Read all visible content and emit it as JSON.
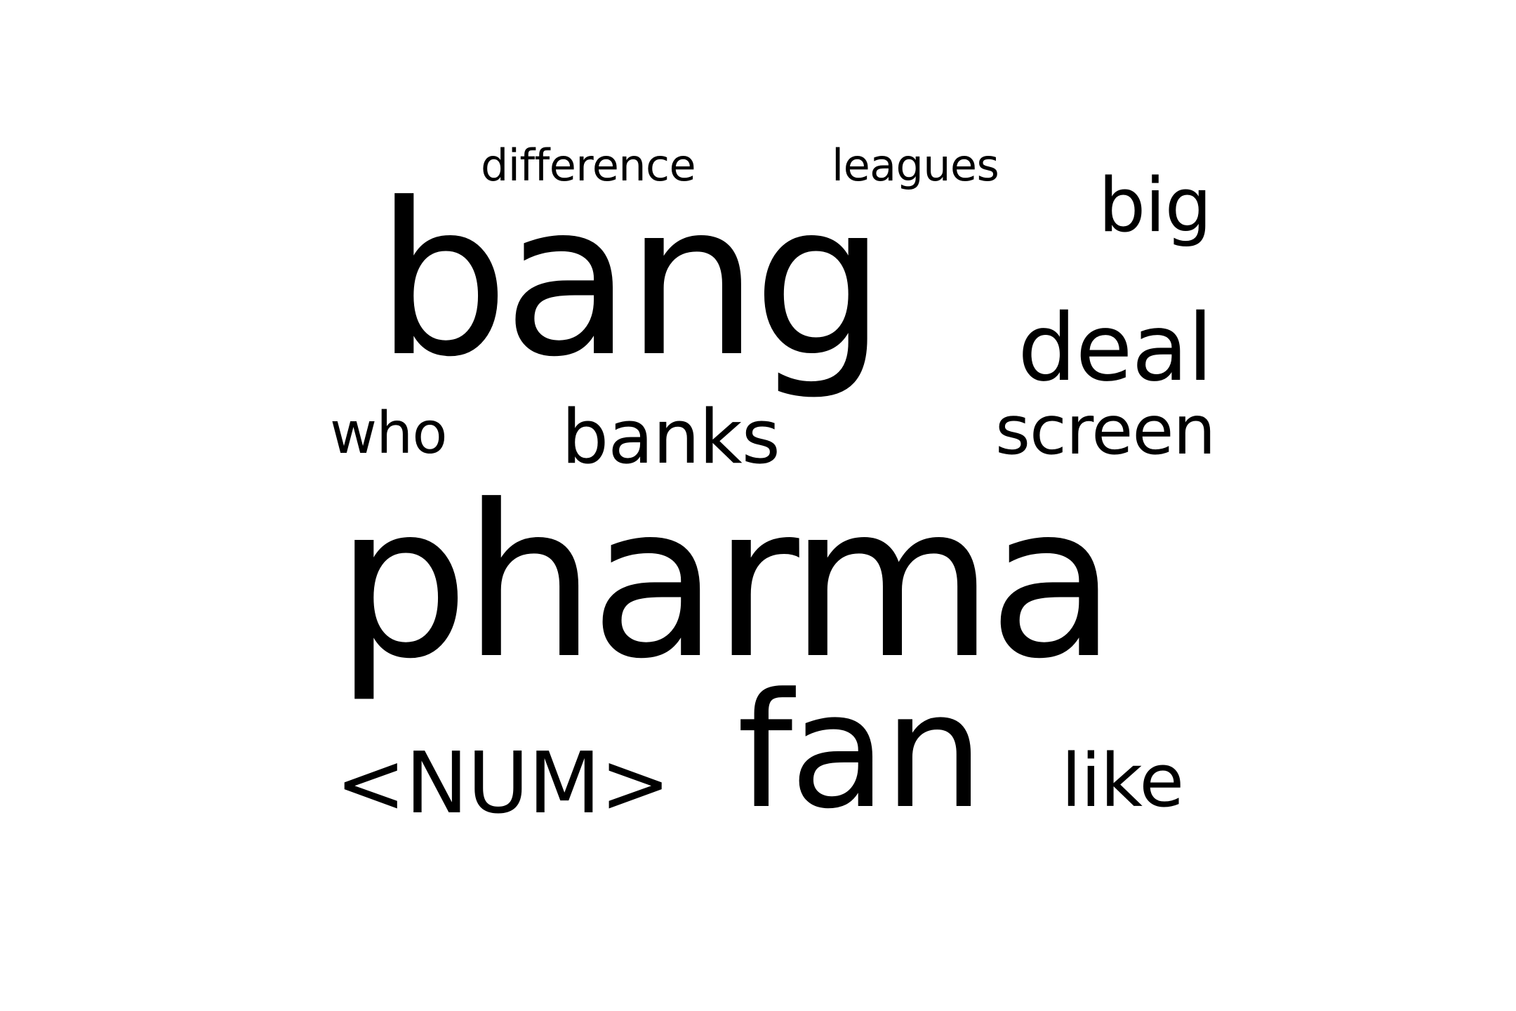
{
  "cloud": {
    "words": [
      {
        "text": "difference"
      },
      {
        "text": "leagues"
      },
      {
        "text": "big"
      },
      {
        "text": "bang"
      },
      {
        "text": "deal"
      },
      {
        "text": "who"
      },
      {
        "text": "banks"
      },
      {
        "text": "screen"
      },
      {
        "text": "pharma"
      },
      {
        "text": "<NUM>"
      },
      {
        "text": "fan"
      },
      {
        "text": "like"
      }
    ],
    "text_color": "#000000",
    "background_color": "#ffffff"
  }
}
